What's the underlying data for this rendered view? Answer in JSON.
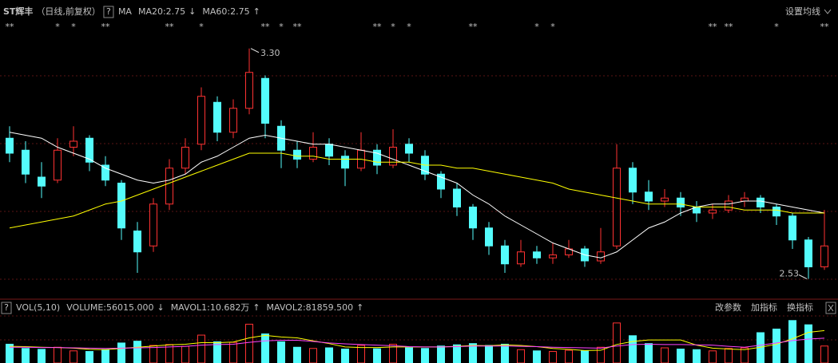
{
  "chart_data": [
    {
      "type": "candlestick",
      "title": "ST辉丰",
      "subtitle": "（日线,前复权）",
      "help": "?",
      "indicator": "MA",
      "settings_button": "设置均线",
      "ylim": [
        2.47,
        3.35
      ],
      "up_color": "#ff3232",
      "down_color": "#54fcfc",
      "open": [
        3.0,
        2.96,
        2.87,
        2.86,
        2.97,
        3.0,
        2.91,
        2.85,
        2.69,
        2.64,
        2.78,
        2.9,
        2.98,
        3.12,
        3.02,
        3.1,
        3.2,
        3.04,
        2.96,
        2.93,
        2.98,
        2.94,
        2.9,
        2.96,
        2.91,
        2.98,
        2.94,
        2.88,
        2.83,
        2.77,
        2.7,
        2.64,
        2.58,
        2.62,
        2.6,
        2.61,
        2.63,
        2.59,
        2.64,
        2.9,
        2.82,
        2.79,
        2.8,
        2.77,
        2.75,
        2.76,
        2.79,
        2.8,
        2.77,
        2.74,
        2.66,
        2.57
      ],
      "high": [
        3.04,
        2.99,
        2.92,
        3.0,
        3.04,
        3.01,
        2.94,
        2.86,
        2.72,
        2.8,
        2.93,
        3.0,
        3.17,
        3.14,
        3.13,
        3.3,
        3.21,
        3.06,
        2.99,
        3.02,
        3.0,
        2.96,
        3.02,
        2.98,
        3.03,
        3.0,
        2.96,
        2.89,
        2.85,
        2.78,
        2.72,
        2.66,
        2.66,
        2.64,
        2.65,
        2.66,
        2.64,
        2.7,
        2.98,
        2.92,
        2.86,
        2.83,
        2.82,
        2.79,
        2.78,
        2.81,
        2.82,
        2.81,
        2.78,
        2.75,
        2.67,
        2.76
      ],
      "low": [
        2.92,
        2.85,
        2.8,
        2.85,
        2.94,
        2.89,
        2.84,
        2.66,
        2.55,
        2.62,
        2.76,
        2.88,
        2.96,
        2.99,
        3.0,
        3.08,
        3.0,
        2.9,
        2.9,
        2.92,
        2.91,
        2.84,
        2.89,
        2.88,
        2.9,
        2.92,
        2.86,
        2.8,
        2.74,
        2.66,
        2.61,
        2.55,
        2.57,
        2.58,
        2.58,
        2.6,
        2.57,
        2.58,
        2.63,
        2.78,
        2.76,
        2.77,
        2.74,
        2.72,
        2.73,
        2.75,
        2.77,
        2.75,
        2.71,
        2.63,
        2.53,
        2.56
      ],
      "close": [
        2.95,
        2.88,
        2.84,
        2.96,
        2.99,
        2.92,
        2.86,
        2.7,
        2.62,
        2.78,
        2.9,
        2.97,
        3.14,
        3.02,
        3.1,
        3.22,
        3.05,
        2.96,
        2.93,
        2.97,
        2.94,
        2.9,
        2.96,
        2.91,
        2.97,
        2.95,
        2.88,
        2.83,
        2.77,
        2.7,
        2.64,
        2.58,
        2.62,
        2.6,
        2.61,
        2.63,
        2.59,
        2.62,
        2.9,
        2.82,
        2.79,
        2.8,
        2.77,
        2.75,
        2.76,
        2.79,
        2.8,
        2.77,
        2.74,
        2.66,
        2.57,
        2.64
      ],
      "series": [
        {
          "name": "MA20:2.75",
          "trend": "↓",
          "color": "#ffffff",
          "values": [
            3.02,
            3.01,
            3.0,
            2.97,
            2.95,
            2.93,
            2.9,
            2.88,
            2.86,
            2.85,
            2.86,
            2.88,
            2.92,
            2.94,
            2.97,
            3.0,
            3.01,
            3.0,
            2.99,
            2.98,
            2.98,
            2.97,
            2.96,
            2.95,
            2.93,
            2.91,
            2.89,
            2.87,
            2.85,
            2.81,
            2.78,
            2.74,
            2.71,
            2.68,
            2.65,
            2.63,
            2.61,
            2.6,
            2.62,
            2.66,
            2.7,
            2.72,
            2.75,
            2.77,
            2.78,
            2.78,
            2.79,
            2.79,
            2.78,
            2.77,
            2.76,
            2.75
          ]
        },
        {
          "name": "MA60:2.75",
          "trend": "↑",
          "color": "#ffff00",
          "values": [
            2.7,
            2.71,
            2.72,
            2.73,
            2.74,
            2.76,
            2.78,
            2.79,
            2.81,
            2.83,
            2.85,
            2.87,
            2.89,
            2.91,
            2.93,
            2.95,
            2.95,
            2.95,
            2.94,
            2.94,
            2.93,
            2.93,
            2.93,
            2.92,
            2.92,
            2.92,
            2.91,
            2.91,
            2.9,
            2.9,
            2.89,
            2.88,
            2.87,
            2.86,
            2.85,
            2.83,
            2.82,
            2.81,
            2.8,
            2.79,
            2.78,
            2.78,
            2.78,
            2.77,
            2.77,
            2.77,
            2.76,
            2.76,
            2.76,
            2.75,
            2.75,
            2.75
          ]
        }
      ],
      "flags": [
        "**",
        null,
        null,
        "*",
        "*",
        null,
        "**",
        null,
        null,
        null,
        "**",
        null,
        "*",
        null,
        null,
        null,
        "**",
        "*",
        "**",
        null,
        null,
        null,
        null,
        "**",
        "*",
        "*",
        null,
        null,
        null,
        "**",
        null,
        null,
        null,
        "*",
        "*",
        null,
        null,
        null,
        null,
        null,
        null,
        null,
        null,
        null,
        "**",
        "**",
        null,
        null,
        "*",
        null,
        null,
        "**"
      ],
      "annotations": [
        "3.30",
        "2.53"
      ]
    },
    {
      "type": "bar",
      "title": "VOL(5,10)",
      "help": "?",
      "ylim": [
        0,
        150000
      ],
      "values": [
        62000,
        48000,
        45000,
        52000,
        40000,
        38000,
        44000,
        66000,
        72000,
        58000,
        61000,
        55000,
        92000,
        70000,
        68000,
        128000,
        96000,
        70000,
        52000,
        48000,
        50000,
        46000,
        58000,
        47000,
        62000,
        50000,
        48000,
        56000,
        60000,
        64000,
        58000,
        62000,
        44000,
        40000,
        38000,
        42000,
        40000,
        52000,
        132000,
        90000,
        64000,
        50000,
        46000,
        44000,
        40000,
        48000,
        50000,
        100000,
        112000,
        140000,
        126000,
        56015
      ],
      "value_name": "VOLUME:56015.000",
      "value_trend": "↓",
      "series": [
        {
          "name": "MAVOL1:10.682万",
          "trend": "↑",
          "color": "#ffff00",
          "values": [
            55000,
            54000,
            52000,
            51000,
            49000,
            45000,
            44000,
            48000,
            52000,
            56000,
            60000,
            62000,
            67000,
            67000,
            69000,
            83000,
            91000,
            86000,
            83000,
            73000,
            64000,
            53000,
            51000,
            51000,
            53000,
            53000,
            53000,
            53000,
            55000,
            58000,
            57000,
            60000,
            58000,
            54000,
            48000,
            45000,
            41000,
            42000,
            61000,
            71000,
            76000,
            76000,
            76000,
            59000,
            49000,
            46000,
            44000,
            52000,
            62000,
            80000,
            101000,
            106820
          ]
        },
        {
          "name": "MAVOL2:81859.500",
          "trend": "↑",
          "color": "#ff44ff",
          "values": [
            52000,
            52000,
            51000,
            51000,
            50000,
            49000,
            48000,
            49000,
            50000,
            51000,
            53000,
            55000,
            59000,
            61000,
            62000,
            68000,
            73000,
            75000,
            75000,
            71000,
            66000,
            63000,
            61000,
            59000,
            57000,
            54000,
            53000,
            53000,
            54000,
            56000,
            56000,
            56000,
            55000,
            54000,
            52000,
            51000,
            50000,
            49000,
            56000,
            61000,
            62000,
            61000,
            61000,
            60000,
            59000,
            55000,
            52000,
            59000,
            66000,
            74000,
            79000,
            81859.5
          ]
        }
      ],
      "buttons": [
        "改参数",
        "加指标",
        "换指标"
      ]
    }
  ]
}
